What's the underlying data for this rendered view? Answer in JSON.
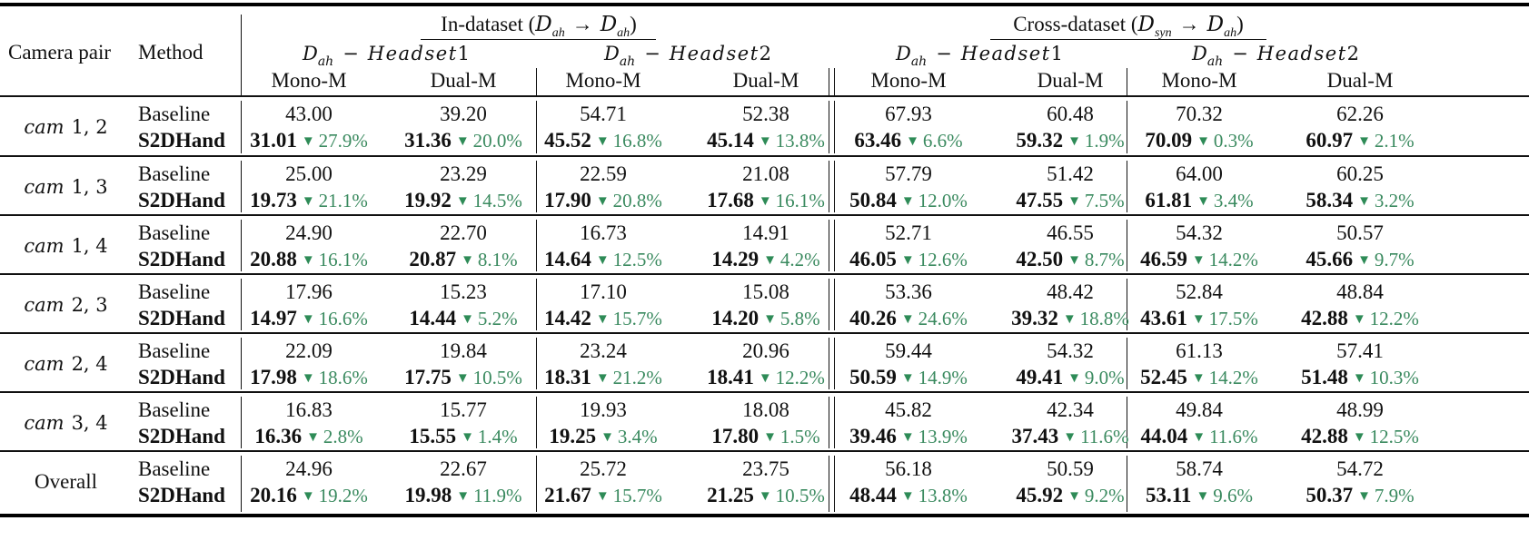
{
  "table": {
    "header": {
      "camera_pair": "Camera pair",
      "method": "Method",
      "groups": [
        {
          "label_text": "In-dataset (",
          "label_math_from": "D",
          "label_math_from_sub": "ah",
          "arrow": "→",
          "label_math_to": "D",
          "label_math_to_sub": "ah",
          "label_close": ")",
          "subsets": [
            {
              "prefix": "D",
              "sub": "ah",
              "dash": "−",
              "name": "Headset",
              "num": "1",
              "cols": [
                "Mono-M",
                "Dual-M"
              ]
            },
            {
              "prefix": "D",
              "sub": "ah",
              "dash": "−",
              "name": "Headset",
              "num": "2",
              "cols": [
                "Mono-M",
                "Dual-M"
              ]
            }
          ]
        },
        {
          "label_text": "Cross-dataset (",
          "label_math_from": "D",
          "label_math_from_sub": "syn",
          "arrow": "→",
          "label_math_to": "D",
          "label_math_to_sub": "ah",
          "label_close": ")",
          "subsets": [
            {
              "prefix": "D",
              "sub": "ah",
              "dash": "−",
              "name": "Headset",
              "num": "1",
              "cols": [
                "Mono-M",
                "Dual-M"
              ]
            },
            {
              "prefix": "D",
              "sub": "ah",
              "dash": "−",
              "name": "Headset",
              "num": "2",
              "cols": [
                "Mono-M",
                "Dual-M"
              ]
            }
          ]
        }
      ]
    },
    "methods": {
      "baseline": "Baseline",
      "ours": "S2DHand"
    },
    "delta_symbol": "▼",
    "colors": {
      "delta_green": "#3a8a5f",
      "triangle_green": "#2e8b57",
      "text": "#111111"
    },
    "rows": [
      {
        "cam_word": "cam",
        "cam_nums": "1, 2",
        "baseline": [
          "43.00",
          "39.20",
          "54.71",
          "52.38",
          "67.93",
          "60.48",
          "70.32",
          "62.26"
        ],
        "ours": [
          "31.01",
          "31.36",
          "45.52",
          "45.14",
          "63.46",
          "59.32",
          "70.09",
          "60.97"
        ],
        "delta": [
          "27.9%",
          "20.0%",
          "16.8%",
          "13.8%",
          "6.6%",
          "1.9%",
          "0.3%",
          "2.1%"
        ]
      },
      {
        "cam_word": "cam",
        "cam_nums": "1, 3",
        "baseline": [
          "25.00",
          "23.29",
          "22.59",
          "21.08",
          "57.79",
          "51.42",
          "64.00",
          "60.25"
        ],
        "ours": [
          "19.73",
          "19.92",
          "17.90",
          "17.68",
          "50.84",
          "47.55",
          "61.81",
          "58.34"
        ],
        "delta": [
          "21.1%",
          "14.5%",
          "20.8%",
          "16.1%",
          "12.0%",
          "7.5%",
          "3.4%",
          "3.2%"
        ]
      },
      {
        "cam_word": "cam",
        "cam_nums": "1, 4",
        "baseline": [
          "24.90",
          "22.70",
          "16.73",
          "14.91",
          "52.71",
          "46.55",
          "54.32",
          "50.57"
        ],
        "ours": [
          "20.88",
          "20.87",
          "14.64",
          "14.29",
          "46.05",
          "42.50",
          "46.59",
          "45.66"
        ],
        "delta": [
          "16.1%",
          "8.1%",
          "12.5%",
          "4.2%",
          "12.6%",
          "8.7%",
          "14.2%",
          "9.7%"
        ]
      },
      {
        "cam_word": "cam",
        "cam_nums": "2, 3",
        "baseline": [
          "17.96",
          "15.23",
          "17.10",
          "15.08",
          "53.36",
          "48.42",
          "52.84",
          "48.84"
        ],
        "ours": [
          "14.97",
          "14.44",
          "14.42",
          "14.20",
          "40.26",
          "39.32",
          "43.61",
          "42.88"
        ],
        "delta": [
          "16.6%",
          "5.2%",
          "15.7%",
          "5.8%",
          "24.6%",
          "18.8%",
          "17.5%",
          "12.2%"
        ]
      },
      {
        "cam_word": "cam",
        "cam_nums": "2, 4",
        "baseline": [
          "22.09",
          "19.84",
          "23.24",
          "20.96",
          "59.44",
          "54.32",
          "61.13",
          "57.41"
        ],
        "ours": [
          "17.98",
          "17.75",
          "18.31",
          "18.41",
          "50.59",
          "49.41",
          "52.45",
          "51.48"
        ],
        "delta": [
          "18.6%",
          "10.5%",
          "21.2%",
          "12.2%",
          "14.9%",
          "9.0%",
          "14.2%",
          "10.3%"
        ]
      },
      {
        "cam_word": "cam",
        "cam_nums": "3, 4",
        "baseline": [
          "16.83",
          "15.77",
          "19.93",
          "18.08",
          "45.82",
          "42.34",
          "49.84",
          "48.99"
        ],
        "ours": [
          "16.36",
          "15.55",
          "19.25",
          "17.80",
          "39.46",
          "37.43",
          "44.04",
          "42.88"
        ],
        "delta": [
          "2.8%",
          "1.4%",
          "3.4%",
          "1.5%",
          "13.9%",
          "11.6%",
          "11.6%",
          "12.5%"
        ]
      },
      {
        "cam_word": "",
        "cam_nums": "",
        "label": "Overall",
        "baseline": [
          "24.96",
          "22.67",
          "25.72",
          "23.75",
          "56.18",
          "50.59",
          "58.74",
          "54.72"
        ],
        "ours": [
          "20.16",
          "19.98",
          "21.67",
          "21.25",
          "48.44",
          "45.92",
          "53.11",
          "50.37"
        ],
        "delta": [
          "19.2%",
          "11.9%",
          "15.7%",
          "10.5%",
          "13.8%",
          "9.2%",
          "9.6%",
          "7.9%"
        ]
      }
    ]
  }
}
